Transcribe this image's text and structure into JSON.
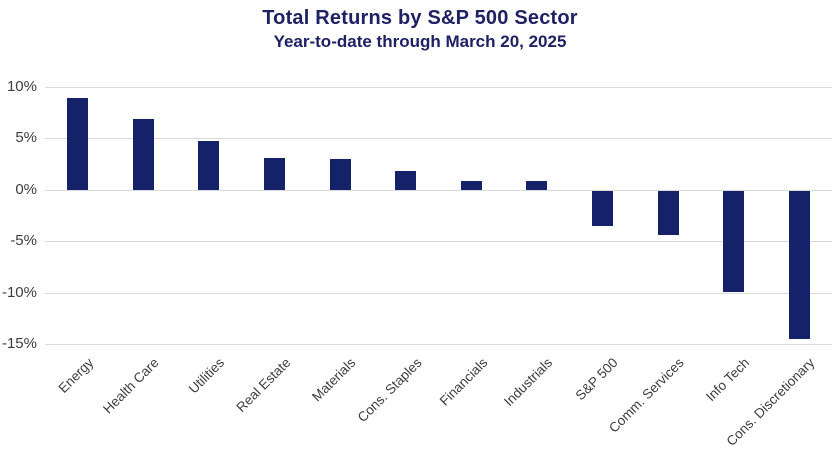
{
  "header": {
    "title": "Total Returns by S&P 500 Sector",
    "subtitle": "Year-to-date through March 20, 2025"
  },
  "chart_data": {
    "type": "bar",
    "title": "Total Returns by S&P 500 Sector",
    "subtitle": "Year-to-date through March 20, 2025",
    "categories": [
      "Energy",
      "Health Care",
      "Utilities",
      "Real Estate",
      "Materials",
      "Cons. Staples",
      "Financials",
      "Industrials",
      "S&P 500",
      "Comm. Services",
      "Info Tech",
      "Cons. Discretionary"
    ],
    "values": [
      8.9,
      6.9,
      4.7,
      3.1,
      3.0,
      1.8,
      0.9,
      0.9,
      -3.4,
      -4.3,
      -9.8,
      -14.4
    ],
    "unit": "%",
    "xlabel": "",
    "ylabel": "",
    "ylim": [
      -15,
      10
    ],
    "ytick_interval": 5,
    "ytick_labels": [
      "10%",
      "5%",
      "0%",
      "-5%",
      "-10%",
      "-15%"
    ],
    "grid": true,
    "legend": false,
    "colors": {
      "bar": "#152169",
      "title": "#1e2164",
      "gridline": "#d9d9d9",
      "axis_text": "#3d3d3d"
    }
  }
}
